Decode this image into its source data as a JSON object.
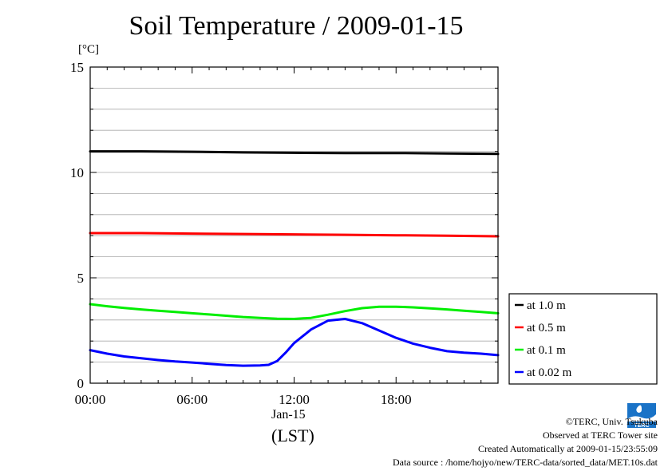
{
  "title": "Soil Temperature / 2009-01-15",
  "unit_label": "[°C]",
  "x_date": "Jan-15",
  "x_caption": "(LST)",
  "credits": {
    "copyright": "©TERC, Univ. Tsukuba",
    "observed": "Observed at TERC Tower site",
    "created": "Created Automatically at 2009-01-15/23:55:09",
    "source": "Data source : /home/hojyo/new/TERC-data/sorted_data/MET.10s.dat"
  },
  "logo": {
    "icon": "terc-logo-icon",
    "text": "TERC",
    "color": "#1a73c7"
  },
  "chart_data": {
    "type": "line",
    "x_unit": "hours (LST)",
    "xlim": [
      0,
      24
    ],
    "ylim": [
      0,
      15
    ],
    "xticks": [
      "00:00",
      "06:00",
      "12:00",
      "18:00"
    ],
    "xtick_values": [
      0,
      6,
      12,
      18
    ],
    "yticks": [
      0,
      5,
      10,
      15
    ],
    "grid": true,
    "legend_position": "right-bottom outside",
    "series": [
      {
        "name": "at 1.0 m",
        "color": "#000000",
        "x": [
          0,
          3,
          6,
          9,
          12,
          15,
          18,
          21,
          24
        ],
        "y": [
          11.0,
          11.0,
          10.98,
          10.95,
          10.93,
          10.92,
          10.92,
          10.9,
          10.88
        ]
      },
      {
        "name": "at 0.5 m",
        "color": "#ff0000",
        "x": [
          0,
          3,
          6,
          9,
          12,
          15,
          18,
          21,
          24
        ],
        "y": [
          7.12,
          7.12,
          7.1,
          7.08,
          7.06,
          7.04,
          7.02,
          7.0,
          6.97
        ]
      },
      {
        "name": "at 0.1 m",
        "color": "#00ee00",
        "x": [
          0,
          1,
          2,
          3,
          4,
          5,
          6,
          7,
          8,
          9,
          10,
          11,
          12,
          13,
          14,
          15,
          16,
          17,
          18,
          19,
          20,
          21,
          22,
          23,
          24
        ],
        "y": [
          3.75,
          3.65,
          3.57,
          3.5,
          3.44,
          3.38,
          3.32,
          3.26,
          3.2,
          3.14,
          3.1,
          3.06,
          3.05,
          3.1,
          3.25,
          3.42,
          3.56,
          3.63,
          3.63,
          3.6,
          3.55,
          3.5,
          3.44,
          3.38,
          3.32
        ]
      },
      {
        "name": "at 0.02 m",
        "color": "#0000ff",
        "x": [
          0,
          1,
          2,
          3,
          4,
          5,
          6,
          7,
          8,
          9,
          10,
          10.5,
          11,
          11.5,
          12,
          13,
          14,
          15,
          16,
          17,
          18,
          19,
          20,
          21,
          22,
          23,
          24
        ],
        "y": [
          1.57,
          1.4,
          1.27,
          1.18,
          1.1,
          1.03,
          0.98,
          0.92,
          0.86,
          0.83,
          0.84,
          0.87,
          1.05,
          1.45,
          1.9,
          2.55,
          2.97,
          3.05,
          2.85,
          2.5,
          2.15,
          1.88,
          1.68,
          1.52,
          1.45,
          1.4,
          1.33
        ]
      }
    ]
  }
}
